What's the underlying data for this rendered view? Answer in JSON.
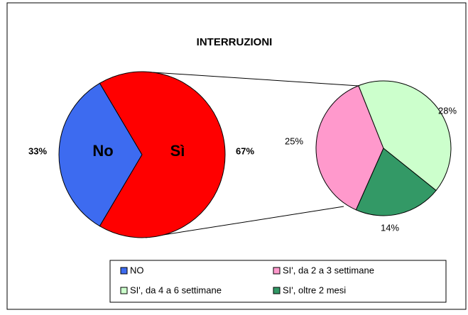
{
  "chart_data": {
    "type": "pie_of_pie",
    "title": "INTERRUZIONI",
    "main_pie": {
      "labels": [
        "No",
        "Sì"
      ],
      "values": [
        33,
        67
      ],
      "value_labels": [
        "33%",
        "67%"
      ],
      "colors": [
        "#3d6bf0",
        "#ff0000"
      ]
    },
    "sub_pie": {
      "values": [
        25,
        28,
        14
      ],
      "value_labels": [
        "25%",
        "28%",
        "14%"
      ],
      "colors": [
        "#ff99cc",
        "#ccffcc",
        "#339966"
      ]
    },
    "legend": [
      "NO",
      "SI', da 2 a 3 settimane",
      "SI', da 4 a 6 settimane",
      "SI', oltre 2 mesi"
    ]
  }
}
